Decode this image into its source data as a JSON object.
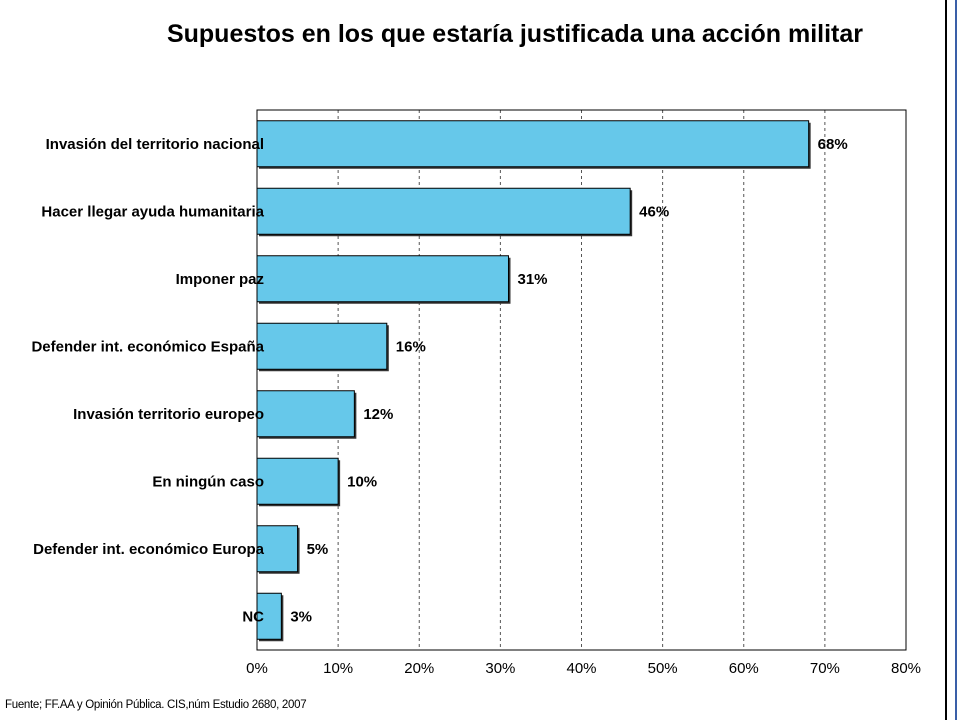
{
  "title": "Supuestos en los que estaría justificada una acción militar",
  "source": "Fuente; FF.AA y Opinión Pública. CIS,núm Estudio 2680, 2007",
  "chart_data": {
    "type": "bar",
    "orientation": "horizontal",
    "title": "Supuestos en los que estaría justificada una acción militar",
    "categories": [
      "Invasión del territorio nacional",
      "Hacer llegar ayuda humanitaria",
      "Imponer paz",
      "Defender int. económico España",
      "Invasión territorio europeo",
      "En ningún caso",
      "Defender int. económico Europa",
      "NC"
    ],
    "values": [
      68,
      46,
      31,
      16,
      12,
      10,
      5,
      3
    ],
    "data_labels": [
      "68%",
      "46%",
      "31%",
      "16%",
      "12%",
      "10%",
      "5%",
      "3%"
    ],
    "x_ticks": [
      "0%",
      "10%",
      "20%",
      "30%",
      "40%",
      "50%",
      "60%",
      "70%",
      "80%"
    ],
    "xlim": [
      0,
      80
    ],
    "xlabel": "",
    "ylabel": "",
    "grid": "vertical dashed",
    "bar_color": "#66c8ea",
    "legend": "none"
  }
}
